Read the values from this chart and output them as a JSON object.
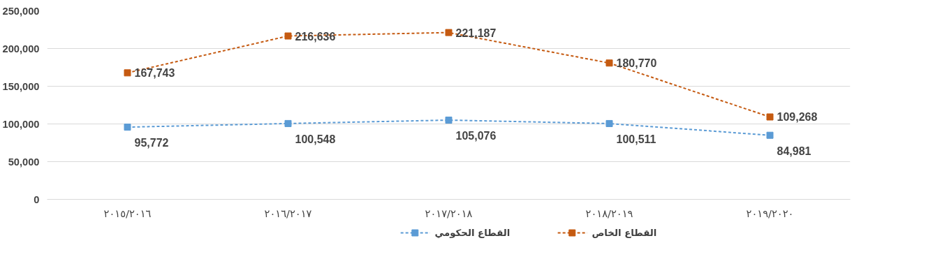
{
  "chart_data": {
    "type": "line",
    "categories": [
      "٢٠١٥/٢٠١٦",
      "٢٠١٦/٢٠١٧",
      "٢٠١٧/٢٠١٨",
      "٢٠١٨/٢٠١٩",
      "٢٠١٩/٢٠٢٠"
    ],
    "series": [
      {
        "name": "القطاع الحكومي",
        "color": "#5b9bd5",
        "values": [
          95772,
          100548,
          105076,
          100511,
          84981
        ],
        "value_labels": [
          "95,772",
          "100,548",
          "105,076",
          "100,511",
          "84,981"
        ]
      },
      {
        "name": "القطاع الخاص",
        "color": "#c55a11",
        "values": [
          167743,
          216636,
          221187,
          180770,
          109268
        ],
        "value_labels": [
          "167,743",
          "216,636",
          "221,187",
          "180,770",
          "109,268"
        ]
      }
    ],
    "ylim": [
      0,
      250000
    ],
    "yticks": [
      {
        "value": 0,
        "label": "0"
      },
      {
        "value": 50000,
        "label": "50,000"
      },
      {
        "value": 100000,
        "label": "100,000"
      },
      {
        "value": 150000,
        "label": "150,000"
      },
      {
        "value": 200000,
        "label": "200,000"
      },
      {
        "value": 250000,
        "label": "250,000"
      }
    ],
    "grid": "y",
    "legend": "bottom",
    "marker": "square",
    "line_style": "dashed"
  }
}
